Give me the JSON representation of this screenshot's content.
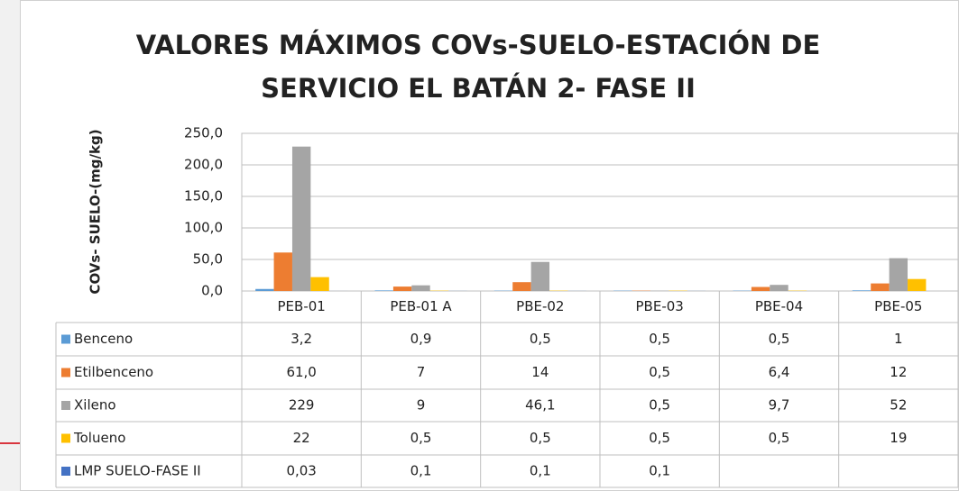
{
  "chart_data": {
    "type": "bar",
    "title": [
      "VALORES MÁXIMOS COVs-SUELO-ESTACIÓN DE",
      "SERVICIO EL BATÁN 2- FASE II"
    ],
    "y_label": "COVs- SUELO-(mg/kg)",
    "categories": [
      "PEB-01",
      "PEB-01 A",
      "PBE-02",
      "PBE-03",
      "PBE-04",
      "PBE-05"
    ],
    "series": [
      {
        "name": "Benceno",
        "color": "#5b9bd5",
        "values": [
          3.2,
          0.9,
          0.5,
          0.5,
          0.5,
          1
        ],
        "value_labels": [
          "3,2",
          "0,9",
          "0,5",
          "0,5",
          "0,5",
          "1"
        ]
      },
      {
        "name": "Etilbenceno",
        "color": "#ed7d31",
        "values": [
          61,
          7,
          14,
          0.5,
          6.4,
          12
        ],
        "value_labels": [
          "61,0",
          "7",
          "14",
          "0,5",
          "6,4",
          "12"
        ]
      },
      {
        "name": "Xileno",
        "color": "#a5a5a5",
        "values": [
          229,
          9,
          46.1,
          0.5,
          9.7,
          52
        ],
        "value_labels": [
          "229",
          "9",
          "46,1",
          "0,5",
          "9,7",
          "52"
        ]
      },
      {
        "name": "Tolueno",
        "color": "#ffc000",
        "values": [
          22,
          0.5,
          0.5,
          0.5,
          0.5,
          19
        ],
        "value_labels": [
          "22",
          "0,5",
          "0,5",
          "0,5",
          "0,5",
          "19"
        ]
      },
      {
        "name": "LMP SUELO-FASE II",
        "color": "#4472c4",
        "values": [
          0.03,
          0.1,
          0.1,
          0.1,
          null,
          null
        ],
        "value_labels": [
          "0,03",
          "0,1",
          "0,1",
          "0,1",
          null,
          null
        ]
      }
    ],
    "ylim": [
      0,
      250
    ],
    "yticks": [
      {
        "value": 0,
        "label": "0,0"
      },
      {
        "value": 50,
        "label": "50,0"
      },
      {
        "value": 100,
        "label": "100,0"
      },
      {
        "value": 150,
        "label": "150,0"
      },
      {
        "value": 200,
        "label": "200,0"
      },
      {
        "value": 250,
        "label": "250,0"
      }
    ],
    "grid": true
  }
}
